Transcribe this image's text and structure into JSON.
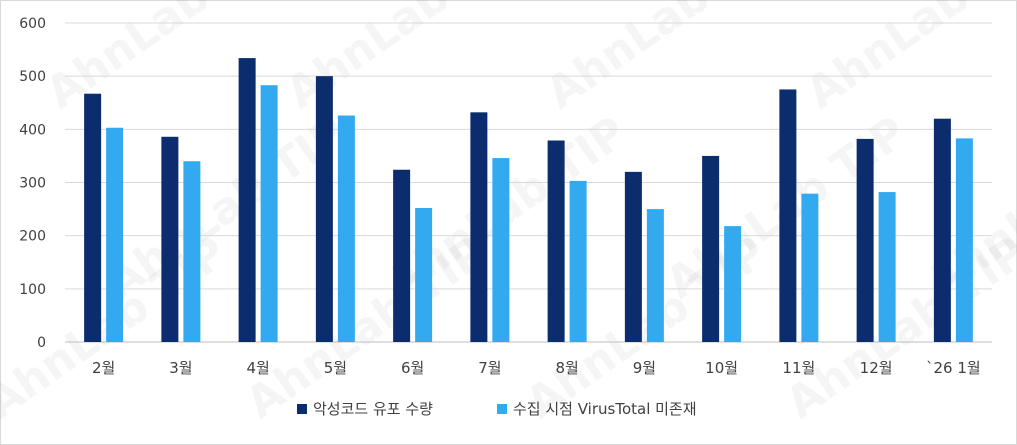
{
  "chart_data": {
    "type": "bar",
    "title": "",
    "xlabel": "",
    "ylabel": "",
    "categories": [
      "2월",
      "3월",
      "4월",
      "5월",
      "6월",
      "7월",
      "8월",
      "9월",
      "10월",
      "11월",
      "12월",
      "`26 1월"
    ],
    "series": [
      {
        "name": "악성코드 유포 수량",
        "color": "#0b2d6e",
        "values": [
          467,
          386,
          534,
          500,
          324,
          432,
          379,
          320,
          350,
          475,
          382,
          420
        ]
      },
      {
        "name": "수집 시점 VirusTotal 미존재",
        "color": "#33aaf0",
        "values": [
          403,
          340,
          483,
          426,
          252,
          346,
          303,
          250,
          218,
          279,
          282,
          383
        ]
      }
    ],
    "ylim": [
      0,
      600
    ],
    "yticks": [
      0,
      100,
      200,
      300,
      400,
      500,
      600
    ],
    "grid": true,
    "legend_position": "bottom"
  },
  "watermark": "AhnLab TIP"
}
